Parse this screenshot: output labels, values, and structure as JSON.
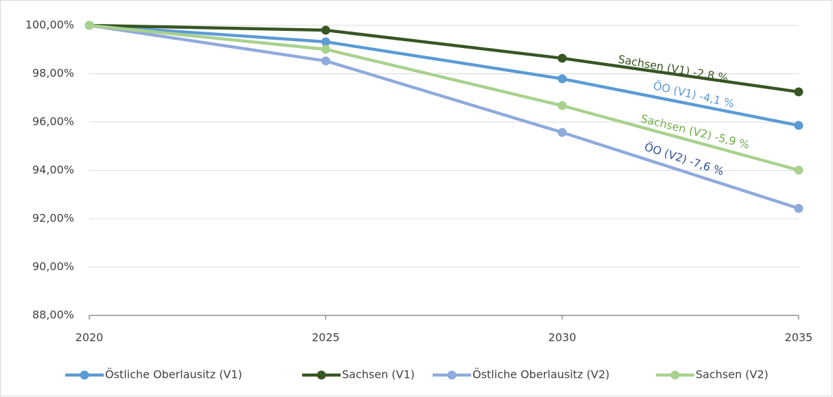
{
  "chart_data": {
    "type": "line",
    "x": [
      2020,
      2025,
      2030,
      2035
    ],
    "xlim": [
      2020,
      2035
    ],
    "xticks": [
      2020,
      2025,
      2030,
      2035
    ],
    "ylim": [
      88,
      100
    ],
    "yticks": [
      {
        "value": 88,
        "label": "88,00%"
      },
      {
        "value": 90,
        "label": "90,00%"
      },
      {
        "value": 92,
        "label": "92,00%"
      },
      {
        "value": 94,
        "label": "94,00%"
      },
      {
        "value": 96,
        "label": "96,00%"
      },
      {
        "value": 98,
        "label": "98,00%"
      },
      {
        "value": 100,
        "label": "100,00%"
      }
    ],
    "grid": true,
    "legend": "bottom",
    "series": [
      {
        "name": "Östliche Oberlausitz (V1)",
        "color": "#5b9bd5",
        "values": [
          100,
          99.32,
          97.79,
          95.86
        ]
      },
      {
        "name": "Sachsen (V1)",
        "color": "#375623",
        "values": [
          100,
          99.8,
          98.64,
          97.25
        ]
      },
      {
        "name": "Östliche Oberlausitz (V2)",
        "color": "#8faadc",
        "values": [
          100,
          98.53,
          95.57,
          92.43
        ]
      },
      {
        "name": "Sachsen (V2)",
        "color": "#a9d18e",
        "values": [
          100,
          99.01,
          96.68,
          94.01
        ]
      }
    ],
    "annotations": [
      {
        "text": "Sachsen (V1) -2,8 %",
        "color": "#375623"
      },
      {
        "text": "ÖO (V1) -4,1 %",
        "color": "#5b9bd5"
      },
      {
        "text": "Sachsen (V2) -5,9 %",
        "color": "#70ad47"
      },
      {
        "text": "ÖO (V2) -7,6 %",
        "color": "#2f5597"
      }
    ]
  }
}
